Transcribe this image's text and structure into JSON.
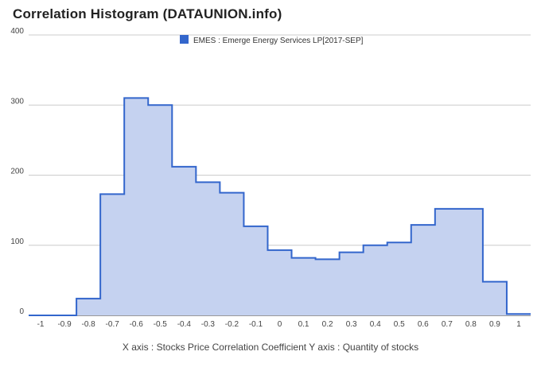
{
  "title": "Correlation Histogram (DATAUNION.info)",
  "chart_data": {
    "type": "area",
    "title": "Correlation Histogram (DATAUNION.info)",
    "xlabel": "X axis : Stocks Price Correlation Coefficient  Y axis : Quantity of stocks",
    "ylabel": "",
    "series": [
      {
        "name": "EMES : Emerge Energy Services LP[2017-SEP]",
        "color": "#3366cc",
        "fill": "#c5d2f0",
        "steps": [
          {
            "from": -1.05,
            "to": -0.85,
            "value": 0
          },
          {
            "from": -0.85,
            "to": -0.75,
            "value": 24
          },
          {
            "from": -0.75,
            "to": -0.65,
            "value": 173
          },
          {
            "from": -0.65,
            "to": -0.55,
            "value": 310
          },
          {
            "from": -0.55,
            "to": -0.45,
            "value": 300
          },
          {
            "from": -0.45,
            "to": -0.35,
            "value": 212
          },
          {
            "from": -0.35,
            "to": -0.25,
            "value": 190
          },
          {
            "from": -0.25,
            "to": -0.15,
            "value": 175
          },
          {
            "from": -0.15,
            "to": -0.05,
            "value": 127
          },
          {
            "from": -0.05,
            "to": 0.05,
            "value": 93
          },
          {
            "from": 0.05,
            "to": 0.15,
            "value": 82
          },
          {
            "from": 0.15,
            "to": 0.25,
            "value": 80
          },
          {
            "from": 0.25,
            "to": 0.35,
            "value": 90
          },
          {
            "from": 0.35,
            "to": 0.45,
            "value": 100
          },
          {
            "from": 0.45,
            "to": 0.55,
            "value": 104
          },
          {
            "from": 0.55,
            "to": 0.65,
            "value": 129
          },
          {
            "from": 0.65,
            "to": 0.85,
            "value": 152
          },
          {
            "from": 0.85,
            "to": 0.95,
            "value": 48
          },
          {
            "from": 0.95,
            "to": 1.05,
            "value": 2
          }
        ]
      }
    ],
    "xlim": [
      -1.05,
      1.05
    ],
    "ylim": [
      0,
      400
    ],
    "x_ticks": [
      "-1",
      "-0.9",
      "-0.8",
      "-0.7",
      "-0.6",
      "-0.5",
      "-0.4",
      "-0.3",
      "-0.2",
      "-0.1",
      "0",
      "0.1",
      "0.2",
      "0.3",
      "0.4",
      "0.5",
      "0.6",
      "0.7",
      "0.8",
      "0.9",
      "1"
    ],
    "y_ticks": [
      "0",
      "100",
      "200",
      "300",
      "400"
    ],
    "grid": true,
    "legend_position": "top"
  }
}
